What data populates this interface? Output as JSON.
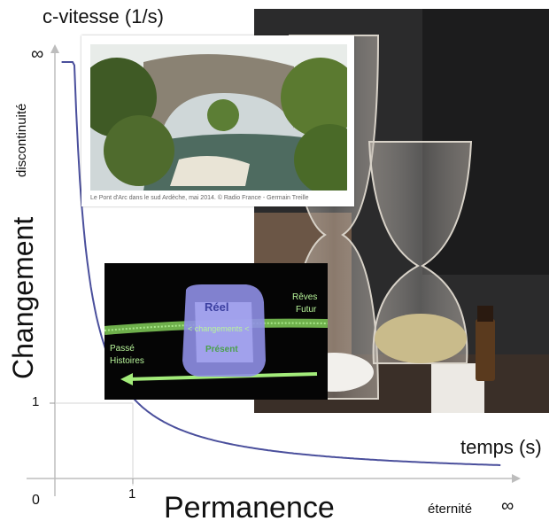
{
  "axes": {
    "y_title": "c-vitesse (1/s)",
    "x_title": "temps (s)",
    "y_side_label": "Changement",
    "x_side_label": "Permanence",
    "y_infinity_label": "discontinuité",
    "x_infinity_label": "éternité",
    "infinity_symbol": "∞",
    "origin_label": "0",
    "y_tick_label": "1",
    "x_tick_label": "1"
  },
  "curve": {
    "type": "reciprocal",
    "color": "#4a4f9c",
    "axis_color": "#b8b8b8"
  },
  "bridge_photo": {
    "caption": "Le Pont d'Arc dans le sud Ardèche, mai 2014. © Radio France - Germain Treille"
  },
  "diagram": {
    "reel": "Réel",
    "changements": "< changements <",
    "present": "Présent",
    "reves": "Rêves",
    "futur": "Futur",
    "passe": "Passé",
    "histoires": "Histoires",
    "colors": {
      "background": "#050505",
      "cube": "#8f8fe6",
      "green": "#9ce870"
    }
  }
}
